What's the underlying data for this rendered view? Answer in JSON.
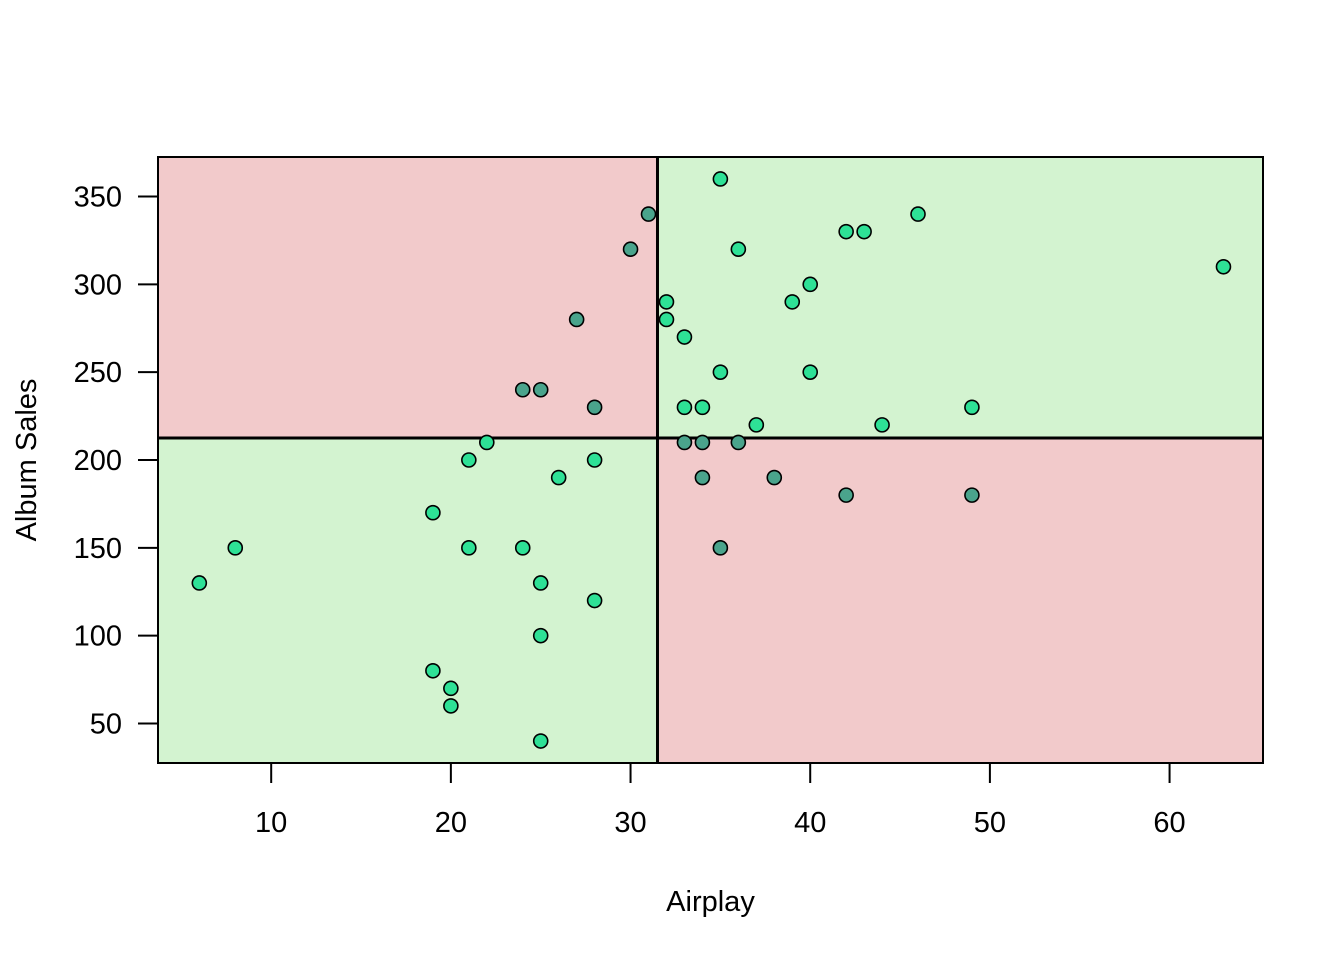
{
  "chart_data": {
    "type": "scatter",
    "title": "",
    "xlabel": "Airplay",
    "ylabel": "Album Sales",
    "xlim": [
      3.7,
      65.2
    ],
    "ylim": [
      27.5,
      372.5
    ],
    "x_ticks": [
      10,
      20,
      30,
      40,
      50,
      60
    ],
    "y_ticks": [
      50,
      100,
      150,
      200,
      250,
      300,
      350
    ],
    "mean_x": 31.5,
    "mean_y": 212.5,
    "grid": false,
    "legend": "none",
    "colors": {
      "positive_quadrant": "#d3f3d0",
      "negative_quadrant": "#f2cacb",
      "point_positive": "#2ee196",
      "point_negative": "#4aa48c",
      "point_edge": "#000000",
      "mean_line": "#000000"
    },
    "points": [
      {
        "x": 6,
        "y": 130
      },
      {
        "x": 8,
        "y": 150
      },
      {
        "x": 19,
        "y": 170
      },
      {
        "x": 19,
        "y": 80
      },
      {
        "x": 20,
        "y": 70
      },
      {
        "x": 20,
        "y": 60
      },
      {
        "x": 21,
        "y": 200
      },
      {
        "x": 21,
        "y": 150
      },
      {
        "x": 22,
        "y": 210
      },
      {
        "x": 24,
        "y": 240
      },
      {
        "x": 24,
        "y": 150
      },
      {
        "x": 25,
        "y": 240
      },
      {
        "x": 25,
        "y": 130
      },
      {
        "x": 25,
        "y": 100
      },
      {
        "x": 25,
        "y": 40
      },
      {
        "x": 26,
        "y": 190
      },
      {
        "x": 27,
        "y": 280
      },
      {
        "x": 28,
        "y": 230
      },
      {
        "x": 28,
        "y": 200
      },
      {
        "x": 28,
        "y": 120
      },
      {
        "x": 30,
        "y": 320
      },
      {
        "x": 31,
        "y": 340
      },
      {
        "x": 32,
        "y": 290
      },
      {
        "x": 32,
        "y": 280
      },
      {
        "x": 33,
        "y": 270
      },
      {
        "x": 33,
        "y": 230
      },
      {
        "x": 33,
        "y": 210
      },
      {
        "x": 34,
        "y": 230
      },
      {
        "x": 34,
        "y": 210
      },
      {
        "x": 34,
        "y": 190
      },
      {
        "x": 35,
        "y": 360
      },
      {
        "x": 35,
        "y": 250
      },
      {
        "x": 35,
        "y": 150
      },
      {
        "x": 36,
        "y": 320
      },
      {
        "x": 36,
        "y": 210
      },
      {
        "x": 37,
        "y": 220
      },
      {
        "x": 38,
        "y": 190
      },
      {
        "x": 39,
        "y": 290
      },
      {
        "x": 40,
        "y": 300
      },
      {
        "x": 40,
        "y": 250
      },
      {
        "x": 42,
        "y": 330
      },
      {
        "x": 42,
        "y": 180
      },
      {
        "x": 43,
        "y": 330
      },
      {
        "x": 44,
        "y": 220
      },
      {
        "x": 46,
        "y": 340
      },
      {
        "x": 49,
        "y": 230
      },
      {
        "x": 49,
        "y": 180
      },
      {
        "x": 63,
        "y": 310
      }
    ]
  }
}
